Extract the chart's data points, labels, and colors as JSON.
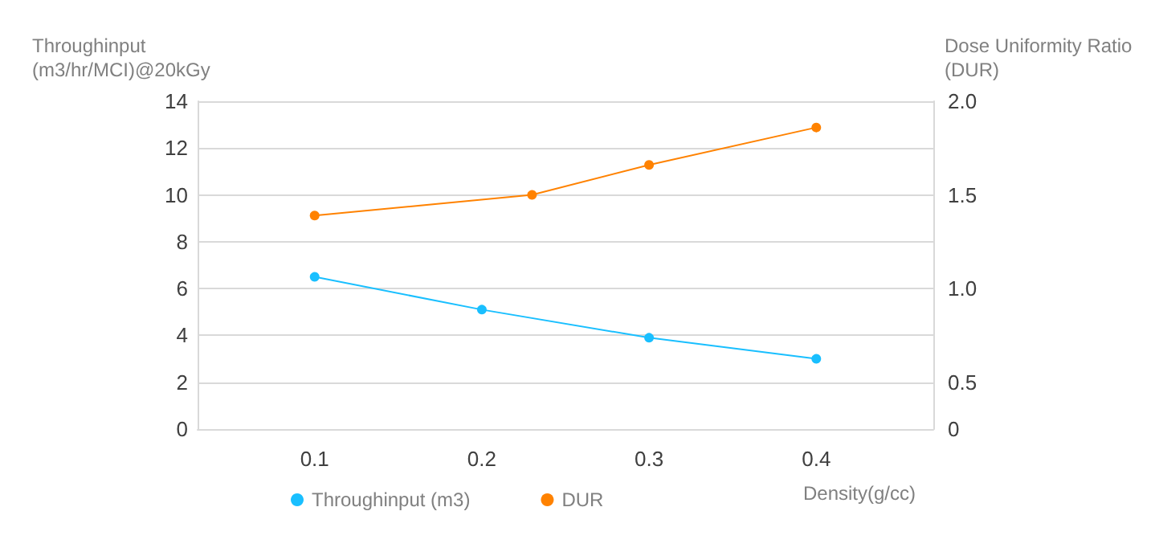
{
  "chart_data": {
    "type": "line",
    "ylabel": "Throughinput\n(m3/hr/MCI)@20kGy",
    "y2label": "Dose Uniformity Ratio\n(DUR)",
    "xlabel": "Density(g/cc)",
    "xlim": [
      0.03,
      0.47
    ],
    "xticks": [
      0.1,
      0.2,
      0.3,
      0.4
    ],
    "ylim": [
      0,
      14
    ],
    "yticks": [
      0,
      2,
      4,
      6,
      8,
      10,
      12,
      14
    ],
    "y2lim": [
      0.25,
      2.0
    ],
    "y2ticks": [
      {
        "value": 0.25,
        "label": "0"
      },
      0.5,
      {
        "value": 1,
        "label": "1.0"
      },
      1.5,
      {
        "value": 2,
        "label": "2.0"
      }
    ],
    "series": [
      {
        "name": "Throughinput (m3)",
        "color": "#19bfff",
        "x": [
          0.1,
          0.2,
          0.3,
          0.4
        ],
        "values": [
          6.5,
          5.1,
          3.9,
          3.0
        ]
      },
      {
        "name": "DUR",
        "color": "#ff8200",
        "axis": "y2",
        "x": [
          0.1,
          0.23,
          0.3,
          0.4
        ],
        "values": [
          1.39,
          1.5,
          1.66,
          1.86
        ]
      }
    ],
    "grid": "y",
    "legend": "bottom",
    "marker": "circle",
    "line_style": "solid"
  }
}
